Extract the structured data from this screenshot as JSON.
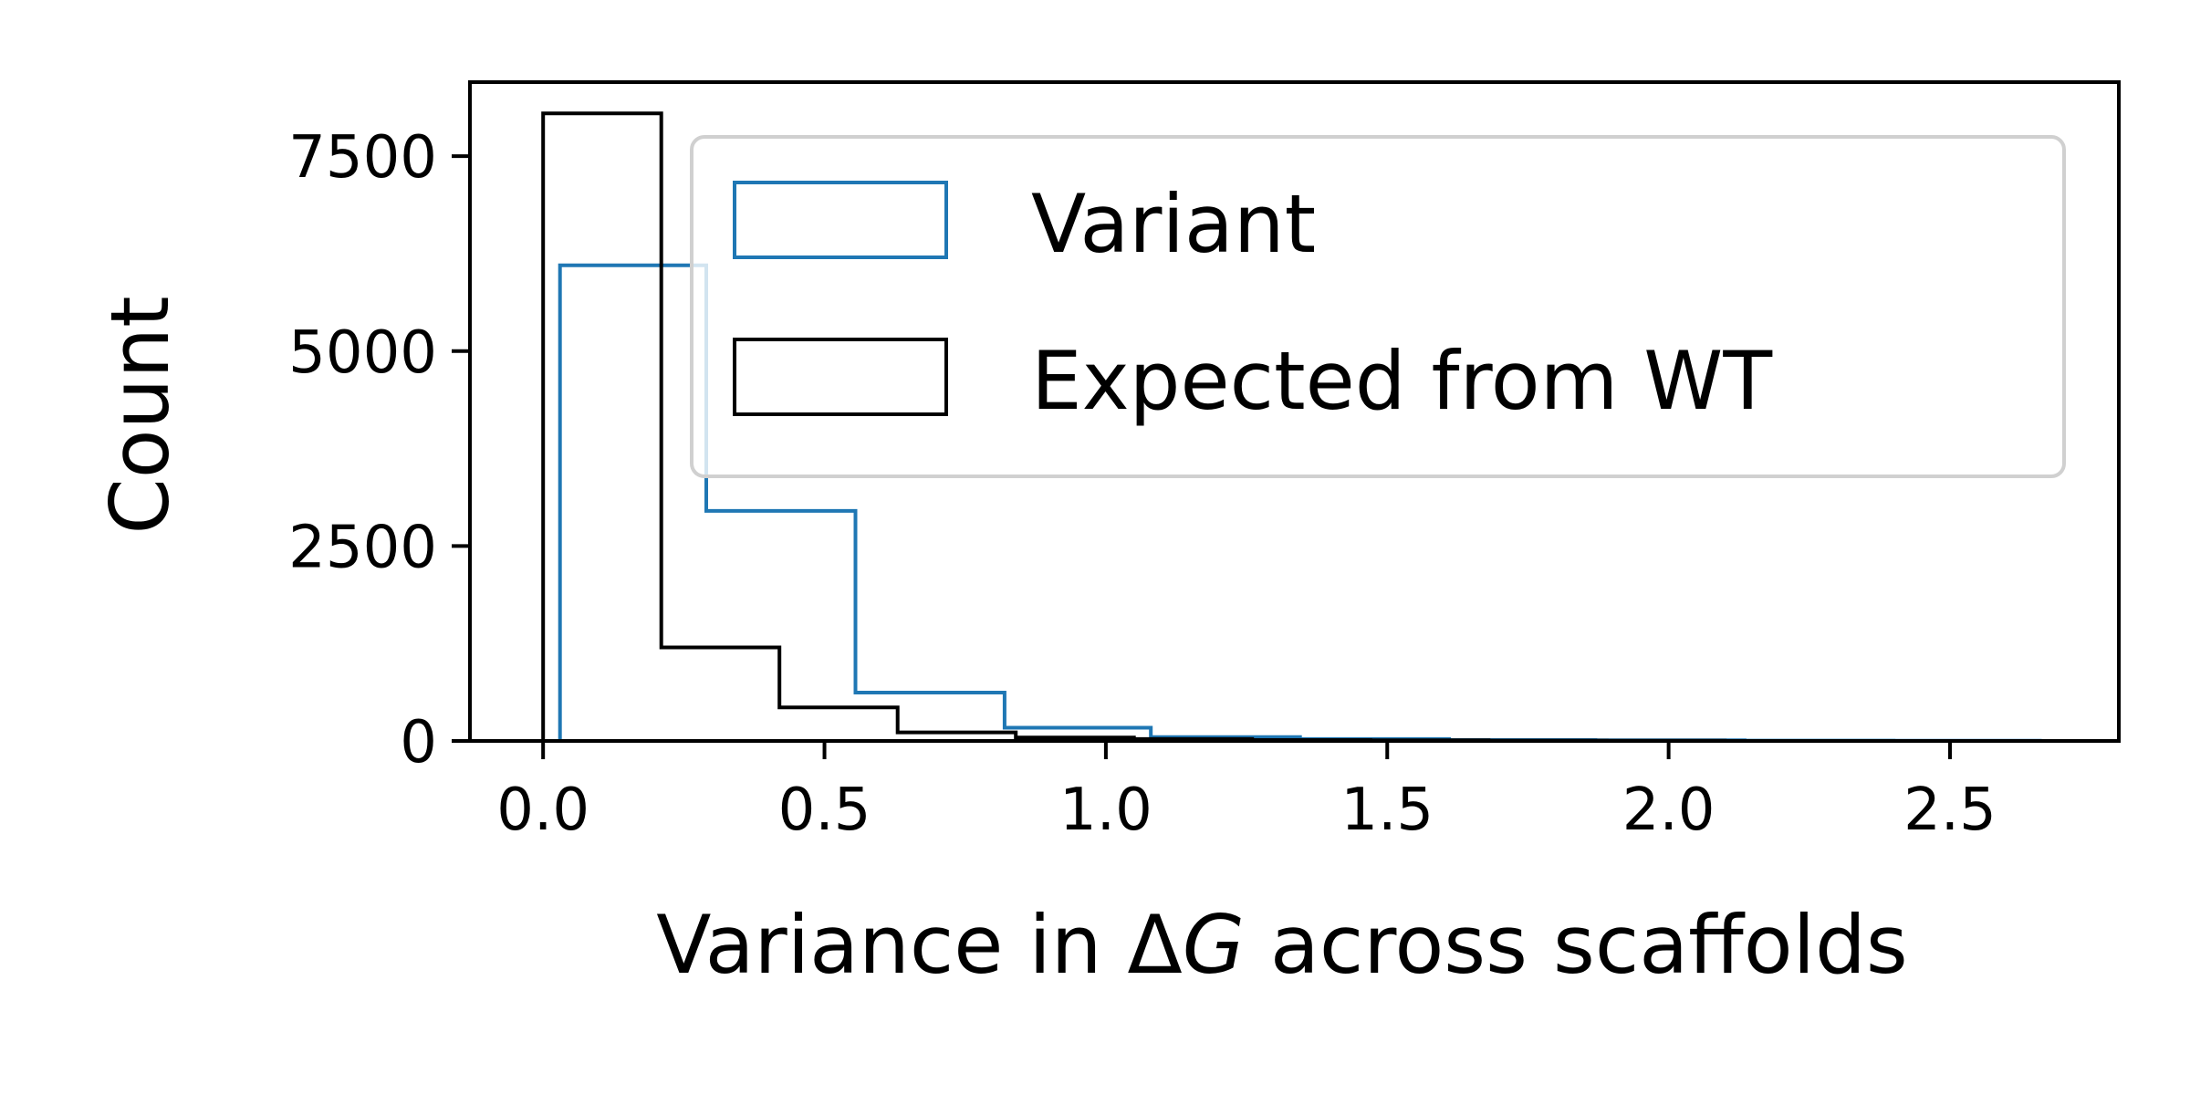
{
  "chart_data": {
    "type": "histogram-step",
    "xlabel_prefix": "Variance in Δ",
    "xlabel_italic": "G",
    "xlabel_suffix": " across scaffolds",
    "ylabel": "Count",
    "xlim": [
      -0.13,
      2.8
    ],
    "ylim": [
      0,
      8450
    ],
    "xticks": [
      0.0,
      0.5,
      1.0,
      1.5,
      2.0,
      2.5
    ],
    "xtick_labels": [
      "0.0",
      "0.5",
      "1.0",
      "1.5",
      "2.0",
      "2.5"
    ],
    "yticks": [
      0,
      2500,
      5000,
      7500
    ],
    "ytick_labels": [
      "0",
      "2500",
      "5000",
      "7500"
    ],
    "legend_position": "upper-right",
    "series": [
      {
        "name": "Variant",
        "color": "#1f77b4",
        "bin_edges": [
          0.03,
          0.29,
          0.555,
          0.82,
          1.08,
          1.345,
          1.61,
          1.87,
          2.135,
          2.4,
          2.66
        ],
        "counts": [
          6100,
          2950,
          620,
          170,
          50,
          25,
          12,
          8,
          5,
          3
        ]
      },
      {
        "name": "Expected from WT",
        "color": "#000000",
        "bin_edges": [
          0.0,
          0.21,
          0.42,
          0.63,
          0.84,
          1.05,
          1.26,
          1.47,
          1.68,
          1.89,
          2.1
        ],
        "counts": [
          8050,
          1200,
          430,
          110,
          45,
          25,
          12,
          8,
          5,
          3
        ]
      }
    ]
  }
}
